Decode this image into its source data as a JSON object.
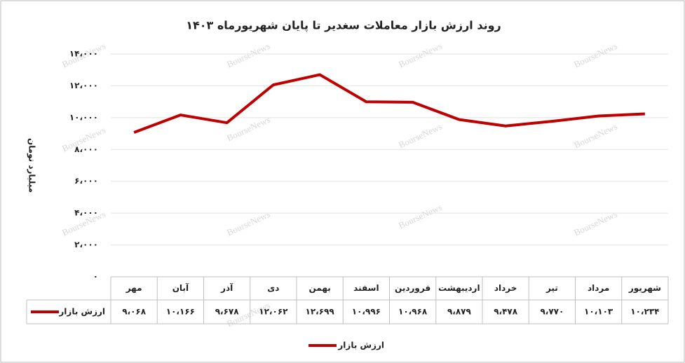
{
  "chart_data": {
    "type": "line",
    "title": "روند ارزش بازار معاملات سغدیر تا پایان شهریورماه ۱۴۰۳",
    "y_label": "میلیارد تومان",
    "watermark": "BourseNews",
    "categories": [
      "مهر",
      "آبان",
      "آذر",
      "دی",
      "بهمن",
      "اسفند",
      "فروردین",
      "اردیبهشت",
      "خرداد",
      "تیر",
      "مرداد",
      "شهریور"
    ],
    "series": [
      {
        "name": "ارزش بازار",
        "color": "#c00000",
        "values": [
          9068,
          10166,
          9678,
          12062,
          12699,
          10996,
          10968,
          9879,
          9478,
          9770,
          10103,
          10234
        ],
        "value_labels": [
          "۹،۰۶۸",
          "۱۰،۱۶۶",
          "۹،۶۷۸",
          "۱۲،۰۶۲",
          "۱۲،۶۹۹",
          "۱۰،۹۹۶",
          "۱۰،۹۶۸",
          "۹،۸۷۹",
          "۹،۴۷۸",
          "۹،۷۷۰",
          "۱۰،۱۰۳",
          "۱۰،۲۳۴"
        ]
      }
    ],
    "ylim": [
      0,
      14000
    ],
    "yticks": [
      {
        "value": 0,
        "label": "۰"
      },
      {
        "value": 2000,
        "label": "۲،۰۰۰"
      },
      {
        "value": 4000,
        "label": "۴،۰۰۰"
      },
      {
        "value": 6000,
        "label": "۶،۰۰۰"
      },
      {
        "value": 8000,
        "label": "۸،۰۰۰"
      },
      {
        "value": 10000,
        "label": "۱۰،۰۰۰"
      },
      {
        "value": 12000,
        "label": "۱۲،۰۰۰"
      },
      {
        "value": 14000,
        "label": "۱۴،۰۰۰"
      }
    ],
    "grid": true,
    "data_table": true,
    "legend": "bottom"
  }
}
